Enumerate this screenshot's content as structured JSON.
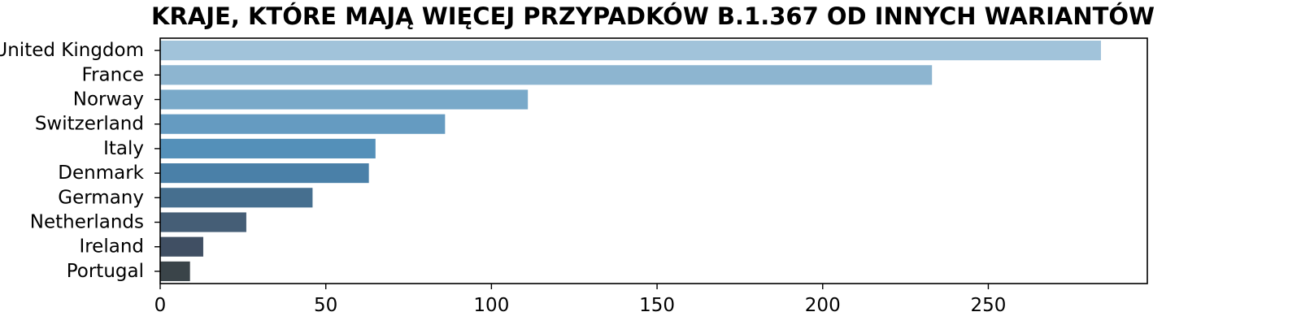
{
  "chart_data": {
    "type": "bar",
    "orientation": "horizontal",
    "title": "KRAJE, KTÓRE MAJĄ WIĘCEJ PRZYPADKÓW B.1.367 OD INNYCH WARIANTÓW",
    "xlabel": "",
    "ylabel": "",
    "categories": [
      "United Kingdom",
      "France",
      "Norway",
      "Switzerland",
      "Italy",
      "Denmark",
      "Germany",
      "Netherlands",
      "Ireland",
      "Portugal"
    ],
    "values": [
      284,
      233,
      111,
      86,
      65,
      63,
      46,
      26,
      13,
      9
    ],
    "xlim": [
      0,
      298
    ],
    "xticks": [
      0,
      50,
      100,
      150,
      200,
      250
    ],
    "grid": false,
    "legend": "none",
    "colors": [
      "#a1c3da",
      "#8db5d0",
      "#79a9c9",
      "#659bc1",
      "#5490b9",
      "#4a80a8",
      "#466f8f",
      "#455e76",
      "#404f63",
      "#3a4449"
    ]
  }
}
